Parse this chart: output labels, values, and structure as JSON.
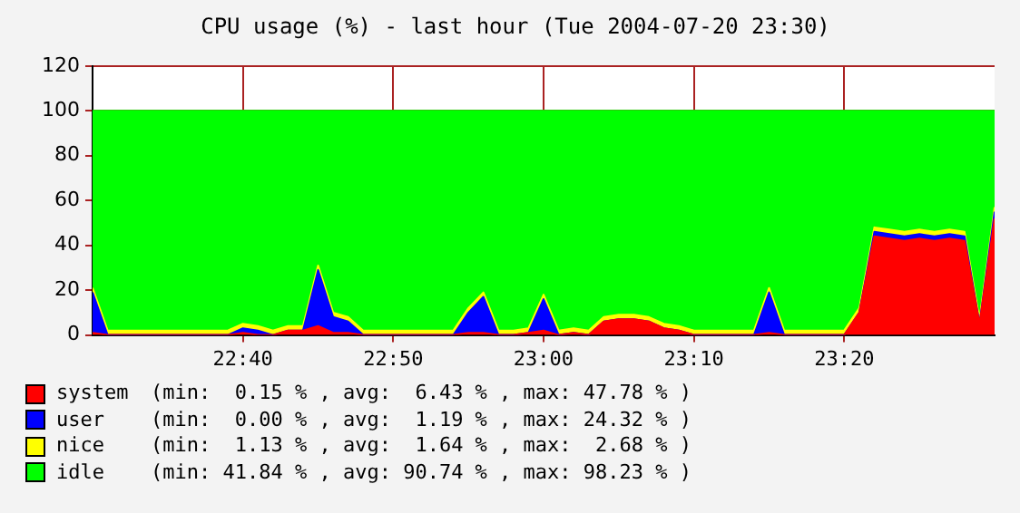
{
  "chart_data": {
    "type": "area",
    "stacked": true,
    "title": "CPU usage (%) - last hour (Tue 2004-07-20 23:30)",
    "x": [
      22.5,
      22.5167,
      22.5333,
      22.55,
      22.5667,
      22.5833,
      22.6,
      22.6167,
      22.6333,
      22.65,
      22.6667,
      22.6833,
      22.7,
      22.7167,
      22.7333,
      22.75,
      22.7667,
      22.7833,
      22.8,
      22.8167,
      22.8333,
      22.85,
      22.8667,
      22.8833,
      22.9,
      22.9167,
      22.9333,
      22.95,
      22.9667,
      22.9833,
      23,
      23.0167,
      23.0333,
      23.05,
      23.0667,
      23.0833,
      23.1,
      23.1167,
      23.1333,
      23.15,
      23.1667,
      23.1833,
      23.2,
      23.2167,
      23.2333,
      23.25,
      23.2667,
      23.2833,
      23.3,
      23.3167,
      23.3333,
      23.35,
      23.3667,
      23.3833,
      23.4,
      23.4167,
      23.4333,
      23.45,
      23.4667,
      23.4833,
      23.5
    ],
    "series": [
      {
        "name": "system",
        "color": "#ff0000",
        "values": [
          1,
          0,
          0,
          0,
          0,
          0,
          0,
          0,
          0,
          0,
          1,
          0,
          0,
          2,
          2,
          4,
          1,
          1,
          0,
          0,
          0,
          0,
          0,
          0,
          0,
          1,
          1,
          0,
          0,
          1,
          2,
          0,
          1,
          0,
          6,
          7,
          7,
          6,
          3,
          2,
          0,
          0,
          0,
          0,
          0,
          1,
          0,
          0,
          0,
          0,
          0,
          10,
          44,
          43,
          42,
          43,
          42,
          43,
          42,
          5,
          52
        ]
      },
      {
        "name": "user",
        "color": "#0000ff",
        "values": [
          18,
          0,
          0,
          0,
          0,
          0,
          0,
          0,
          0,
          0,
          2,
          2,
          0,
          0,
          0,
          25,
          7,
          5,
          0,
          0,
          0,
          0,
          0,
          0,
          0,
          9,
          16,
          0,
          0,
          0,
          14,
          0,
          0,
          0,
          0,
          0,
          0,
          0,
          0,
          0,
          0,
          0,
          0,
          0,
          0,
          18,
          0,
          0,
          0,
          0,
          0,
          0,
          2,
          2,
          2,
          2,
          2,
          2,
          2,
          0,
          3
        ]
      },
      {
        "name": "nice",
        "color": "#ffff00",
        "values": [
          2,
          2,
          2,
          2,
          2,
          2,
          2,
          2,
          2,
          2,
          2,
          2,
          2,
          2,
          2,
          2,
          2,
          2,
          2,
          2,
          2,
          2,
          2,
          2,
          2,
          2,
          2,
          2,
          2,
          2,
          2,
          2,
          2,
          2,
          2,
          2,
          2,
          2,
          2,
          2,
          2,
          2,
          2,
          2,
          2,
          2,
          2,
          2,
          2,
          2,
          2,
          2,
          2,
          2,
          2,
          2,
          2,
          2,
          2,
          2,
          2
        ]
      },
      {
        "name": "idle",
        "color": "#00ff00",
        "values": [
          79,
          98,
          98,
          98,
          98,
          98,
          98,
          98,
          98,
          98,
          95,
          96,
          98,
          96,
          96,
          69,
          90,
          92,
          98,
          98,
          98,
          98,
          98,
          98,
          98,
          88,
          81,
          98,
          98,
          97,
          82,
          98,
          97,
          98,
          92,
          91,
          91,
          92,
          95,
          96,
          98,
          98,
          98,
          98,
          98,
          79,
          98,
          98,
          98,
          98,
          98,
          88,
          52,
          53,
          54,
          53,
          54,
          53,
          54,
          93,
          43
        ]
      }
    ],
    "xlim": [
      22.5,
      23.5
    ],
    "xticks": [
      {
        "value": 22.6667,
        "label": "22:40"
      },
      {
        "value": 22.8333,
        "label": "22:50"
      },
      {
        "value": 23,
        "label": "23:00"
      },
      {
        "value": 23.1667,
        "label": "23:10"
      },
      {
        "value": 23.3333,
        "label": "23:20"
      }
    ],
    "ylim": [
      0,
      120
    ],
    "yticks": [
      0,
      20,
      40,
      60,
      80,
      100,
      120
    ],
    "grid": true,
    "legend": "bottom",
    "annotations": [
      "(min:  0.15 % , avg:  6.43 % , max: 47.78 % )",
      "(min:  0.00 % , avg:  1.19 % , max: 24.32 % )",
      "(min:  1.13 % , avg:  1.64 % , max:  2.68 % )",
      "(min: 41.84 % , avg: 90.74 % , max: 98.23 % )"
    ]
  }
}
